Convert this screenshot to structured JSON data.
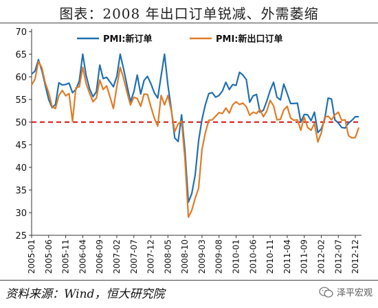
{
  "title": "图表：2008 年出口订单锐减、外需萎缩",
  "source": "资料来源：Wind，恒大研究院",
  "watermark": "泽平宏观",
  "colors": {
    "new_orders": "#1f6fb2",
    "new_export_orders": "#e07b25",
    "threshold": "#d62728"
  },
  "chart_data": {
    "type": "line",
    "xlabel": "",
    "ylabel": "",
    "ylim": [
      25,
      70
    ],
    "yticks": [
      25,
      30,
      35,
      40,
      45,
      50,
      55,
      60,
      65,
      70
    ],
    "x_start": "2005-01",
    "x_end": "2012-12",
    "tick_labels": [
      "2005-01",
      "2005-06",
      "2005-11",
      "2006-04",
      "2006-09",
      "2007-02",
      "2007-07",
      "2007-12",
      "2008-05",
      "2008-10",
      "2009-03",
      "2009-08",
      "2010-01",
      "2010-06",
      "2010-11",
      "2011-04",
      "2011-09",
      "2012-02",
      "2012-07",
      "2012-12"
    ],
    "reference_line": 50,
    "legend_position": "top",
    "series": [
      {
        "name": "PMI:新订单",
        "values": [
          60.6,
          61.3,
          63.8,
          61.4,
          58.2,
          55.0,
          53.2,
          53.9,
          58.7,
          58.2,
          58.3,
          58.6,
          56.5,
          57.2,
          59.1,
          65.0,
          60.3,
          57.4,
          55.6,
          56.7,
          62.6,
          59.6,
          59.9,
          58.9,
          57.8,
          60.1,
          65.0,
          61.7,
          58.1,
          54.5,
          56.7,
          60.4,
          56.2,
          59.2,
          60.1,
          58.5,
          56.5,
          55.3,
          60.2,
          65.0,
          58.2,
          52.8,
          46.5,
          45.7,
          51.6,
          43.7,
          32.3,
          34.2,
          38.3,
          45.9,
          50.6,
          53.9,
          56.3,
          56.5,
          55.5,
          55.9,
          56.9,
          58.8,
          57.2,
          58.3,
          58.1,
          61.0,
          60.4,
          59.4,
          54.4,
          55.8,
          56.1,
          52.2,
          52.6,
          54.6,
          57.0,
          58.8,
          55.5,
          54.9,
          58.4,
          56.3,
          54.1,
          54.1,
          54.2,
          50.0,
          51.7,
          51.6,
          50.3,
          52.2,
          47.7,
          48.5,
          50.6,
          55.3,
          55.1,
          50.5,
          49.8,
          48.8,
          48.7,
          49.8,
          50.4,
          51.2,
          51.2
        ]
      },
      {
        "name": "PMI:新出口订单",
        "values": [
          58.2,
          59.5,
          63.4,
          62.0,
          58.7,
          56.5,
          53.4,
          53.0,
          55.9,
          57.0,
          55.8,
          56.3,
          50.2,
          57.6,
          57.8,
          62.1,
          58.5,
          56.4,
          54.5,
          55.3,
          59.3,
          57.2,
          58.0,
          55.6,
          53.0,
          57.9,
          62.1,
          59.6,
          56.6,
          53.8,
          55.5,
          55.2,
          53.5,
          56.2,
          56.1,
          53.4,
          50.9,
          49.1,
          55.9,
          53.8,
          55.9,
          52.5,
          47.9,
          49.6,
          50.2,
          41.9,
          29.0,
          30.5,
          33.2,
          35.4,
          44.0,
          47.7,
          50.4,
          50.5,
          51.3,
          52.1,
          51.9,
          53.1,
          52.0,
          53.8,
          54.5,
          53.9,
          54.2,
          53.4,
          51.5,
          52.2,
          51.9,
          52.8,
          51.2,
          52.4,
          54.8,
          53.6,
          50.5,
          50.6,
          52.7,
          53.5,
          50.9,
          50.4,
          50.5,
          48.2,
          51.1,
          48.8,
          48.2,
          49.7,
          45.6,
          47.6,
          51.1,
          51.3,
          50.5,
          51.6,
          52.2,
          50.4,
          50.5,
          47.0,
          46.5,
          46.6,
          48.8
        ]
      }
    ]
  }
}
